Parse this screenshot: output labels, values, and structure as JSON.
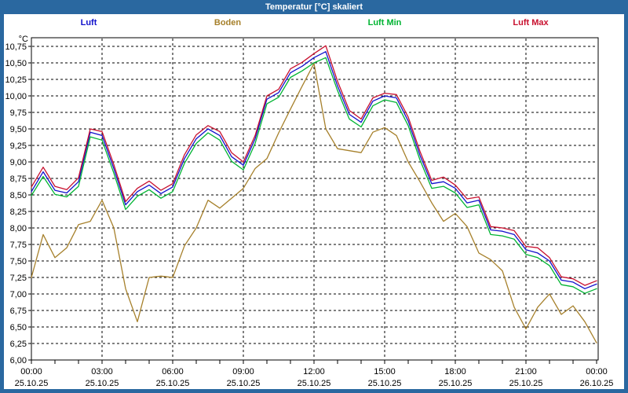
{
  "window": {
    "title": "Temperatur [°C] skaliert",
    "frame_color": "#2A68A0"
  },
  "chart_data": {
    "type": "line",
    "title": "Temperatur [°C] skaliert",
    "y_unit": "°C",
    "ylim": [
      6.0,
      10.875
    ],
    "x_hours_range": [
      0,
      24
    ],
    "sample_interval_hours": 0.5,
    "grid": "dashed",
    "grid_color": "#000000",
    "legend_position": "top",
    "y_ticks": [
      "10,75",
      "10,50",
      "10,25",
      "10,00",
      "9,75",
      "9,50",
      "9,25",
      "9,00",
      "8,75",
      "8,50",
      "8,25",
      "8,00",
      "7,75",
      "7,50",
      "7,25",
      "7,00",
      "6,75",
      "6,50",
      "6,25",
      "6,00"
    ],
    "x_ticks": [
      {
        "time": "00:00",
        "date": "25.10.25"
      },
      {
        "time": "03:00",
        "date": "25.10.25"
      },
      {
        "time": "06:00",
        "date": "25.10.25"
      },
      {
        "time": "09:00",
        "date": "25.10.25"
      },
      {
        "time": "12:00",
        "date": "25.10.25"
      },
      {
        "time": "15:00",
        "date": "25.10.25"
      },
      {
        "time": "18:00",
        "date": "25.10.25"
      },
      {
        "time": "21:00",
        "date": "25.10.25"
      },
      {
        "time": "00:00",
        "date": "26.10.25"
      }
    ],
    "series": [
      {
        "name": "Luft",
        "color": "#1111CC",
        "values": [
          8.55,
          8.85,
          8.57,
          8.53,
          8.7,
          9.45,
          9.4,
          8.9,
          8.35,
          8.55,
          8.65,
          8.52,
          8.62,
          9.05,
          9.35,
          9.5,
          9.4,
          9.08,
          8.95,
          9.35,
          9.95,
          10.05,
          10.35,
          10.45,
          10.58,
          10.67,
          10.15,
          9.72,
          9.6,
          9.92,
          10.0,
          9.97,
          9.62,
          9.1,
          8.67,
          8.7,
          8.6,
          8.38,
          8.42,
          7.97,
          7.95,
          7.9,
          7.67,
          7.62,
          7.5,
          7.21,
          7.18,
          7.08,
          7.15
        ]
      },
      {
        "name": "Boden",
        "color": "#A6802B",
        "values": [
          7.25,
          7.9,
          7.55,
          7.7,
          8.05,
          8.1,
          8.42,
          8.0,
          7.08,
          6.58,
          7.25,
          7.27,
          7.25,
          7.73,
          8.0,
          8.42,
          8.3,
          8.45,
          8.6,
          8.9,
          9.05,
          9.44,
          9.8,
          10.15,
          10.49,
          9.5,
          9.2,
          9.17,
          9.14,
          9.45,
          9.52,
          9.4,
          9.0,
          8.7,
          8.38,
          8.1,
          8.22,
          8.02,
          7.62,
          7.52,
          7.35,
          6.8,
          6.47,
          6.8,
          7.0,
          6.69,
          6.82,
          6.58,
          6.26
        ]
      },
      {
        "name": "Luft Min",
        "color": "#00B432",
        "values": [
          8.49,
          8.78,
          8.51,
          8.47,
          8.63,
          9.38,
          9.33,
          8.83,
          8.28,
          8.48,
          8.58,
          8.45,
          8.55,
          8.98,
          9.28,
          9.44,
          9.33,
          9.01,
          8.88,
          9.28,
          9.88,
          9.98,
          10.28,
          10.38,
          10.5,
          10.58,
          10.08,
          9.65,
          9.53,
          9.85,
          9.94,
          9.9,
          9.55,
          9.03,
          8.6,
          8.63,
          8.53,
          8.31,
          8.35,
          7.9,
          7.88,
          7.83,
          7.6,
          7.55,
          7.43,
          7.14,
          7.11,
          7.01,
          7.08
        ]
      },
      {
        "name": "Luft Max",
        "color": "#C8102E",
        "values": [
          8.62,
          8.92,
          8.63,
          8.58,
          8.76,
          9.5,
          9.46,
          8.96,
          8.4,
          8.6,
          8.71,
          8.57,
          8.67,
          9.11,
          9.41,
          9.55,
          9.46,
          9.14,
          9.0,
          9.4,
          10.0,
          10.1,
          10.41,
          10.51,
          10.64,
          10.76,
          10.22,
          9.78,
          9.65,
          9.97,
          10.04,
          10.02,
          9.68,
          9.16,
          8.72,
          8.77,
          8.65,
          8.44,
          8.47,
          8.02,
          8.0,
          7.96,
          7.72,
          7.7,
          7.55,
          7.26,
          7.23,
          7.13,
          7.2
        ]
      }
    ]
  }
}
